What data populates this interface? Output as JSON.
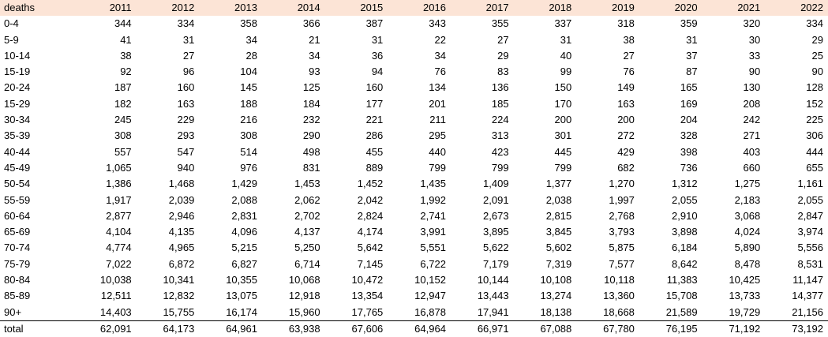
{
  "colors": {
    "header_background": "#fce4d6",
    "total_rule": "#000000"
  },
  "table": {
    "header_label": "deaths",
    "years": [
      "2011",
      "2012",
      "2013",
      "2014",
      "2015",
      "2016",
      "2017",
      "2018",
      "2019",
      "2020",
      "2021",
      "2022"
    ],
    "rows": [
      {
        "label": "0-4",
        "values": [
          "344",
          "334",
          "358",
          "366",
          "387",
          "343",
          "355",
          "337",
          "318",
          "359",
          "320",
          "334"
        ]
      },
      {
        "label": "5-9",
        "values": [
          "41",
          "31",
          "34",
          "21",
          "31",
          "22",
          "27",
          "31",
          "38",
          "31",
          "30",
          "29"
        ]
      },
      {
        "label": "10-14",
        "values": [
          "38",
          "27",
          "28",
          "34",
          "36",
          "34",
          "29",
          "40",
          "27",
          "37",
          "33",
          "25"
        ]
      },
      {
        "label": "15-19",
        "values": [
          "92",
          "96",
          "104",
          "93",
          "94",
          "76",
          "83",
          "99",
          "76",
          "87",
          "90",
          "90"
        ]
      },
      {
        "label": "20-24",
        "values": [
          "187",
          "160",
          "145",
          "125",
          "160",
          "134",
          "136",
          "150",
          "149",
          "165",
          "130",
          "128"
        ]
      },
      {
        "label": "15-29",
        "values": [
          "182",
          "163",
          "188",
          "184",
          "177",
          "201",
          "185",
          "170",
          "163",
          "169",
          "208",
          "152"
        ]
      },
      {
        "label": "30-34",
        "values": [
          "245",
          "229",
          "216",
          "232",
          "221",
          "211",
          "224",
          "200",
          "200",
          "204",
          "242",
          "225"
        ]
      },
      {
        "label": "35-39",
        "values": [
          "308",
          "293",
          "308",
          "290",
          "286",
          "295",
          "313",
          "301",
          "272",
          "328",
          "271",
          "306"
        ]
      },
      {
        "label": "40-44",
        "values": [
          "557",
          "547",
          "514",
          "498",
          "455",
          "440",
          "423",
          "445",
          "429",
          "398",
          "403",
          "444"
        ]
      },
      {
        "label": "45-49",
        "values": [
          "1,065",
          "940",
          "976",
          "831",
          "889",
          "799",
          "799",
          "799",
          "682",
          "736",
          "660",
          "655"
        ]
      },
      {
        "label": "50-54",
        "values": [
          "1,386",
          "1,468",
          "1,429",
          "1,453",
          "1,452",
          "1,435",
          "1,409",
          "1,377",
          "1,270",
          "1,312",
          "1,275",
          "1,161"
        ]
      },
      {
        "label": "55-59",
        "values": [
          "1,917",
          "2,039",
          "2,088",
          "2,062",
          "2,042",
          "1,992",
          "2,091",
          "2,038",
          "1,997",
          "2,055",
          "2,183",
          "2,055"
        ]
      },
      {
        "label": "60-64",
        "values": [
          "2,877",
          "2,946",
          "2,831",
          "2,702",
          "2,824",
          "2,741",
          "2,673",
          "2,815",
          "2,768",
          "2,910",
          "3,068",
          "2,847"
        ]
      },
      {
        "label": "65-69",
        "values": [
          "4,104",
          "4,135",
          "4,096",
          "4,137",
          "4,174",
          "3,991",
          "3,895",
          "3,845",
          "3,793",
          "3,898",
          "4,024",
          "3,974"
        ]
      },
      {
        "label": "70-74",
        "values": [
          "4,774",
          "4,965",
          "5,215",
          "5,250",
          "5,642",
          "5,551",
          "5,622",
          "5,602",
          "5,875",
          "6,184",
          "5,890",
          "5,556"
        ]
      },
      {
        "label": "75-79",
        "values": [
          "7,022",
          "6,872",
          "6,827",
          "6,714",
          "7,145",
          "6,722",
          "7,179",
          "7,319",
          "7,577",
          "8,642",
          "8,478",
          "8,531"
        ]
      },
      {
        "label": "80-84",
        "values": [
          "10,038",
          "10,341",
          "10,355",
          "10,068",
          "10,472",
          "10,152",
          "10,144",
          "10,108",
          "10,118",
          "11,383",
          "10,425",
          "11,147"
        ]
      },
      {
        "label": "85-89",
        "values": [
          "12,511",
          "12,832",
          "13,075",
          "12,918",
          "13,354",
          "12,947",
          "13,443",
          "13,274",
          "13,360",
          "15,708",
          "13,733",
          "14,377"
        ]
      },
      {
        "label": "90+",
        "values": [
          "14,403",
          "15,755",
          "16,174",
          "15,960",
          "17,765",
          "16,878",
          "17,941",
          "18,138",
          "18,668",
          "21,589",
          "19,729",
          "21,156"
        ]
      }
    ],
    "total": {
      "label": "total",
      "values": [
        "62,091",
        "64,173",
        "64,961",
        "63,938",
        "67,606",
        "64,964",
        "66,971",
        "67,088",
        "67,780",
        "76,195",
        "71,192",
        "73,192"
      ]
    }
  }
}
